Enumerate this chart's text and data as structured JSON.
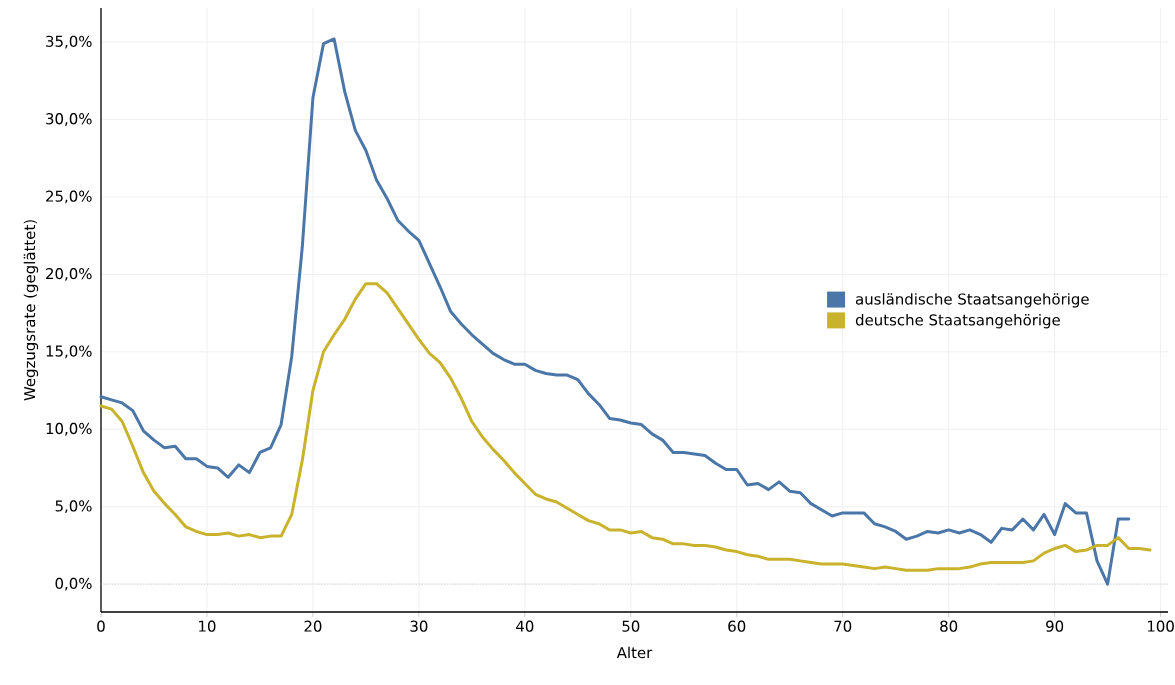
{
  "chart_data": {
    "type": "line",
    "xlabel": "Alter",
    "ylabel": "Wegzugsrate (geglättet)",
    "x": [
      0,
      1,
      2,
      3,
      4,
      5,
      6,
      7,
      8,
      9,
      10,
      11,
      12,
      13,
      14,
      15,
      16,
      17,
      18,
      19,
      20,
      21,
      22,
      23,
      24,
      25,
      26,
      27,
      28,
      29,
      30,
      31,
      32,
      33,
      34,
      35,
      36,
      37,
      38,
      39,
      40,
      41,
      42,
      43,
      44,
      45,
      46,
      47,
      48,
      49,
      50,
      51,
      52,
      53,
      54,
      55,
      56,
      57,
      58,
      59,
      60,
      61,
      62,
      63,
      64,
      65,
      66,
      67,
      68,
      69,
      70,
      71,
      72,
      73,
      74,
      75,
      76,
      77,
      78,
      79,
      80,
      81,
      82,
      83,
      84,
      85,
      86,
      87,
      88,
      89,
      90,
      91,
      92,
      93,
      94,
      95,
      96,
      97,
      98,
      99
    ],
    "series": [
      {
        "name": "ausländische Staatsangehörige",
        "color": "#4a76a8",
        "values": [
          12.1,
          11.9,
          11.7,
          11.2,
          9.9,
          9.3,
          8.8,
          8.9,
          8.1,
          8.1,
          7.6,
          7.5,
          6.9,
          7.7,
          7.2,
          8.5,
          8.8,
          10.3,
          14.7,
          21.8,
          31.4,
          34.9,
          35.2,
          31.8,
          29.3,
          28.0,
          26.1,
          24.9,
          23.5,
          22.8,
          22.2,
          20.7,
          19.2,
          17.6,
          16.8,
          16.1,
          15.5,
          14.9,
          14.5,
          14.2,
          14.2,
          13.8,
          13.6,
          13.5,
          13.5,
          13.2,
          12.3,
          11.6,
          10.7,
          10.6,
          10.4,
          10.3,
          9.7,
          9.3,
          8.5,
          8.5,
          8.4,
          8.3,
          7.8,
          7.4,
          7.4,
          6.4,
          6.5,
          6.1,
          6.6,
          6.0,
          5.9,
          5.2,
          4.8,
          4.4,
          4.6,
          4.6,
          4.6,
          3.9,
          3.7,
          3.4,
          2.9,
          3.1,
          3.4,
          3.3,
          3.5,
          3.3,
          3.5,
          3.2,
          2.7,
          3.6,
          3.5,
          4.2,
          3.5,
          4.5,
          3.2,
          5.2,
          4.6,
          4.6,
          1.5,
          0.0,
          4.2,
          4.2,
          null,
          null
        ]
      },
      {
        "name": "deutsche Staatsangehörige",
        "color": "#c9b22c",
        "values": [
          11.5,
          11.3,
          10.5,
          8.9,
          7.2,
          6.0,
          5.2,
          4.5,
          3.7,
          3.4,
          3.2,
          3.2,
          3.3,
          3.1,
          3.2,
          3.0,
          3.1,
          3.1,
          4.5,
          8.0,
          12.5,
          15.0,
          16.1,
          17.1,
          18.4,
          19.4,
          19.4,
          18.8,
          17.8,
          16.8,
          15.8,
          14.9,
          14.3,
          13.3,
          12.0,
          10.5,
          9.5,
          8.7,
          8.0,
          7.2,
          6.5,
          5.8,
          5.5,
          5.3,
          4.9,
          4.5,
          4.1,
          3.9,
          3.5,
          3.5,
          3.3,
          3.4,
          3.0,
          2.9,
          2.6,
          2.6,
          2.5,
          2.5,
          2.4,
          2.2,
          2.1,
          1.9,
          1.8,
          1.6,
          1.6,
          1.6,
          1.5,
          1.4,
          1.3,
          1.3,
          1.3,
          1.2,
          1.1,
          1.0,
          1.1,
          1.0,
          0.9,
          0.9,
          0.9,
          1.0,
          1.0,
          1.0,
          1.1,
          1.3,
          1.4,
          1.4,
          1.4,
          1.4,
          1.5,
          2.0,
          2.3,
          2.5,
          2.1,
          2.2,
          2.5,
          2.5,
          3.0,
          2.3,
          2.3,
          2.2
        ]
      }
    ],
    "xlim": [
      0,
      100.7
    ],
    "ylim": [
      -1.8,
      37.2
    ],
    "xticks": [
      0,
      10,
      20,
      30,
      40,
      50,
      60,
      70,
      80,
      90,
      100
    ],
    "yticks": [
      {
        "value": 0,
        "label": "0,0%"
      },
      {
        "value": 5,
        "label": "5,0%"
      },
      {
        "value": 10,
        "label": "10,0%"
      },
      {
        "value": 15,
        "label": "15,0%"
      },
      {
        "value": 20,
        "label": "20,0%"
      },
      {
        "value": 25,
        "label": "25,0%"
      },
      {
        "value": 30,
        "label": "30,0%"
      },
      {
        "value": 35,
        "label": "35,0%"
      }
    ],
    "ref_lines": [
      {
        "axis": "y",
        "value": 0,
        "color": "#bbbbbb",
        "line_style": "dotted"
      }
    ],
    "grid": true,
    "legend": "right",
    "marker": "none",
    "line_style": "solid"
  }
}
